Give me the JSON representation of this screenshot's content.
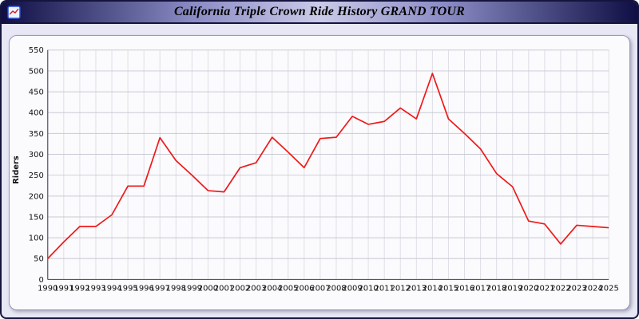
{
  "window": {
    "title": "California Triple Crown Ride History GRAND TOUR"
  },
  "colors": {
    "line": "#f01818",
    "grid_h": "#c9c9d4",
    "grid_v": "#dedee6",
    "axis": "#555566",
    "page_bg": "#e7e7f5",
    "card_bg": "#fbfbfd"
  },
  "chart_data": {
    "type": "line",
    "title": "California Triple Crown Ride History GRAND TOUR",
    "xlabel": "",
    "ylabel": "Riders",
    "ylim": [
      0,
      550
    ],
    "ytick_step": 50,
    "yticks": [
      0,
      50,
      100,
      150,
      200,
      250,
      300,
      350,
      400,
      450,
      500,
      550
    ],
    "grid": true,
    "legend": "none",
    "years": [
      1990,
      1991,
      1992,
      1993,
      1994,
      1995,
      1996,
      1997,
      1998,
      1999,
      2000,
      2001,
      2002,
      2003,
      2004,
      2005,
      2006,
      2007,
      2008,
      2009,
      2010,
      2011,
      2012,
      2013,
      2014,
      2015,
      2016,
      2017,
      2018,
      2019,
      2020,
      2021,
      2022,
      2023,
      2024,
      2025
    ],
    "series": [
      {
        "name": "Riders",
        "values": [
          50,
          90,
          127,
          127,
          155,
          224,
          224,
          340,
          285,
          250,
          213,
          210,
          268,
          280,
          341,
          305,
          268,
          338,
          341,
          391,
          372,
          379,
          411,
          385,
          494,
          385,
          350,
          313,
          254,
          222,
          140,
          133,
          85,
          130,
          127,
          124
        ]
      }
    ]
  }
}
